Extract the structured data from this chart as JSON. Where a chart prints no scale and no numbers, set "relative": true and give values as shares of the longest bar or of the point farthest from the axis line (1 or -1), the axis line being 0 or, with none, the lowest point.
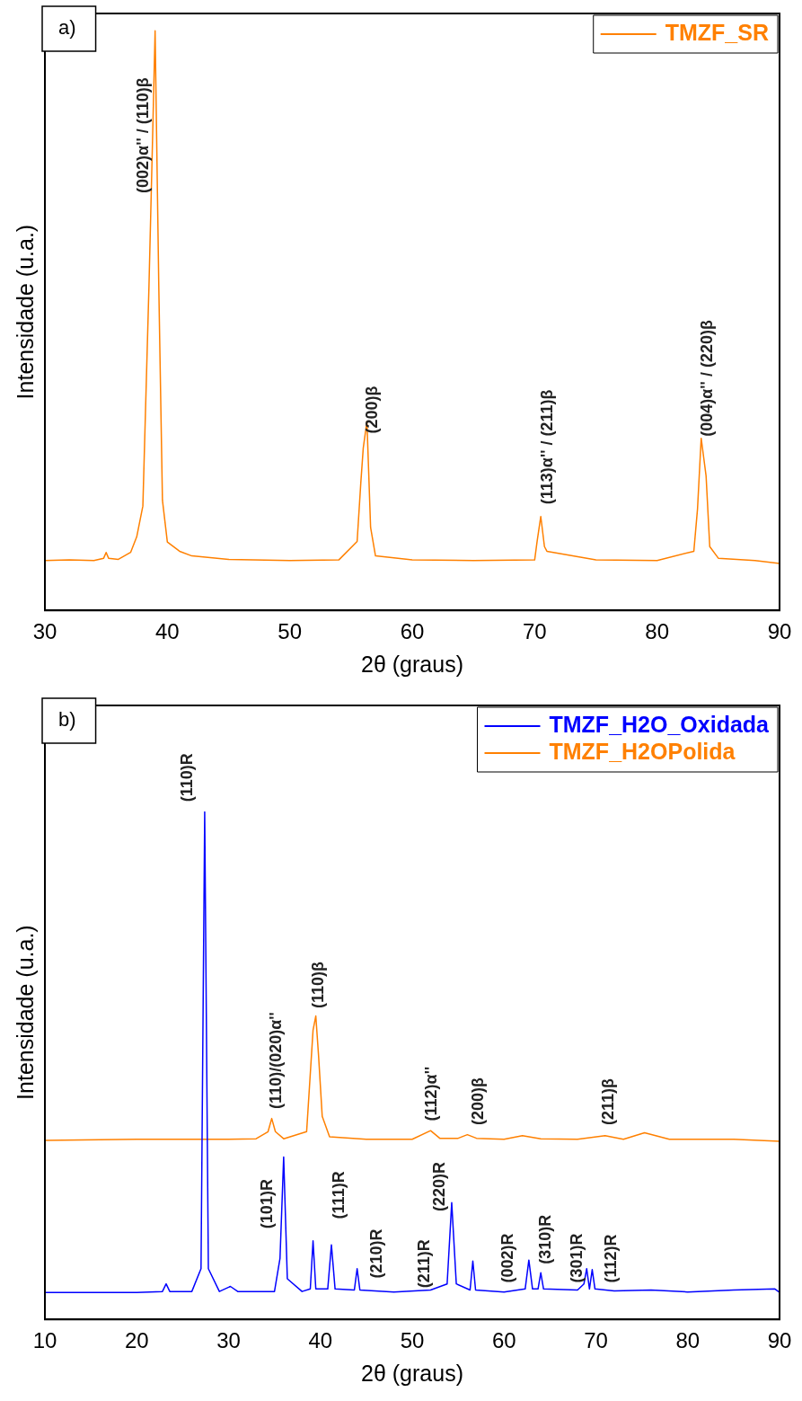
{
  "chart_data": [
    {
      "type": "line",
      "title": "a)",
      "xlabel": "2θ (graus)",
      "ylabel": "Intensidade (u.a.)",
      "relative": true,
      "xlim": [
        30,
        90
      ],
      "xticks": [
        30,
        40,
        50,
        60,
        70,
        80,
        90
      ],
      "grid": false,
      "legend": "top right",
      "marker": "none",
      "line_style": "solid",
      "series": [
        {
          "name": "TMZF_SR",
          "color": "#ff8000",
          "x": [
            30,
            32,
            34,
            34.8,
            35,
            35.2,
            36,
            37,
            37.5,
            38,
            38.5,
            38.8,
            39,
            39.3,
            39.6,
            40,
            41,
            42,
            45,
            50,
            54,
            55.5,
            55.8,
            56,
            56.3,
            56.6,
            57,
            60,
            65,
            70,
            70.2,
            70.5,
            70.8,
            71,
            75,
            80,
            83,
            83.3,
            83.6,
            84,
            84.3,
            85,
            88,
            90
          ],
          "values": [
            0.086,
            0.087,
            0.086,
            0.09,
            0.1,
            0.09,
            0.088,
            0.1,
            0.127,
            0.18,
            0.56,
            0.82,
            1.0,
            0.56,
            0.19,
            0.118,
            0.102,
            0.094,
            0.088,
            0.086,
            0.087,
            0.119,
            0.22,
            0.28,
            0.326,
            0.143,
            0.094,
            0.087,
            0.086,
            0.087,
            0.119,
            0.162,
            0.11,
            0.102,
            0.087,
            0.086,
            0.102,
            0.175,
            0.297,
            0.232,
            0.11,
            0.09,
            0.086,
            0.081
          ]
        }
      ],
      "annotations": [
        "(002)α'' / (110)β",
        "(200)β",
        "(113)α'' / (211)β",
        "(004)α'' / (220)β"
      ]
    },
    {
      "type": "line",
      "title": "b)",
      "xlabel": "2θ (graus)",
      "ylabel": "Intensidade (u.a.)",
      "relative": true,
      "xlim": [
        10,
        90
      ],
      "xticks": [
        10,
        20,
        30,
        40,
        50,
        60,
        70,
        80,
        90
      ],
      "grid": false,
      "legend": "top right",
      "marker": "none",
      "line_style": "solid",
      "series": [
        {
          "name": "TMZF_H2O_Oxidada",
          "color": "#0000ff",
          "x": [
            10,
            15,
            20,
            22.8,
            23.2,
            23.6,
            26,
            27,
            27.4,
            27.8,
            29,
            30.2,
            31,
            35,
            35.6,
            36,
            36.4,
            38,
            38.9,
            39.2,
            39.5,
            40.8,
            41.2,
            41.6,
            43.7,
            44,
            44.3,
            48,
            52,
            53.8,
            54.3,
            54.8,
            56.3,
            56.6,
            56.9,
            60,
            62.3,
            62.7,
            63.1,
            63.7,
            64,
            64.3,
            68,
            68.7,
            69,
            69.3,
            69.6,
            69.9,
            72,
            76,
            80,
            85,
            89.5,
            90
          ],
          "values": [
            0.053,
            0.053,
            0.053,
            0.055,
            0.07,
            0.055,
            0.055,
            0.1,
            1.0,
            0.1,
            0.055,
            0.065,
            0.055,
            0.055,
            0.12,
            0.32,
            0.08,
            0.055,
            0.06,
            0.155,
            0.06,
            0.06,
            0.147,
            0.06,
            0.058,
            0.1,
            0.058,
            0.054,
            0.058,
            0.07,
            0.23,
            0.07,
            0.058,
            0.115,
            0.058,
            0.054,
            0.06,
            0.117,
            0.06,
            0.06,
            0.092,
            0.06,
            0.058,
            0.07,
            0.1,
            0.06,
            0.098,
            0.06,
            0.056,
            0.058,
            0.054,
            0.058,
            0.06,
            0.053
          ]
        },
        {
          "name": "TMZF_H2OPolida",
          "color": "#ff8000",
          "x": [
            10,
            20,
            30,
            33,
            34.3,
            34.7,
            35.1,
            36,
            38.5,
            39.2,
            39.5,
            39.8,
            40.2,
            41,
            45,
            50,
            52,
            53,
            55,
            56,
            57,
            60,
            62,
            64,
            68,
            71,
            73,
            75.3,
            78,
            85,
            90
          ],
          "values": [
            0.353,
            0.355,
            0.355,
            0.356,
            0.37,
            0.396,
            0.37,
            0.356,
            0.37,
            0.57,
            0.598,
            0.52,
            0.4,
            0.36,
            0.355,
            0.355,
            0.372,
            0.357,
            0.357,
            0.364,
            0.357,
            0.355,
            0.362,
            0.356,
            0.355,
            0.362,
            0.355,
            0.368,
            0.355,
            0.355,
            0.351
          ]
        }
      ],
      "annotations": [
        "(110)R",
        "(110)/(020)α''",
        "(110)β",
        "(112)α''",
        "(200)β",
        "(211)β",
        "(101)R",
        "(111)R",
        "(210)R",
        "(211)R",
        "(220)R",
        "(002)R",
        "(310)R",
        "(301)R",
        "(112)R"
      ]
    }
  ]
}
